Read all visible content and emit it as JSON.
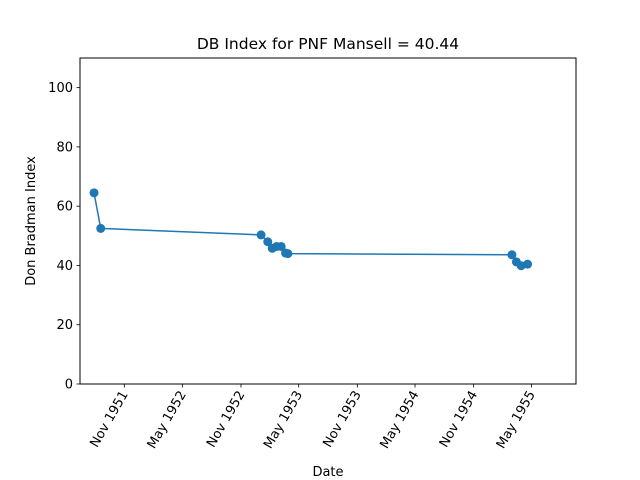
{
  "chart_data": {
    "type": "line",
    "title": "DB Index for PNF Mansell = 40.44",
    "xlabel": "Date",
    "ylabel": "Don Bradman Index",
    "ylim": [
      0,
      110
    ],
    "xlim": [
      "1951-06-15",
      "1955-09-18"
    ],
    "yticks": [
      0,
      20,
      40,
      60,
      80,
      100
    ],
    "xticks": [
      {
        "date": "1951-11-01",
        "label": "Nov 1951"
      },
      {
        "date": "1952-05-01",
        "label": "May 1952"
      },
      {
        "date": "1952-11-01",
        "label": "Nov 1952"
      },
      {
        "date": "1953-05-01",
        "label": "May 1953"
      },
      {
        "date": "1953-11-01",
        "label": "Nov 1953"
      },
      {
        "date": "1954-05-01",
        "label": "May 1954"
      },
      {
        "date": "1954-11-01",
        "label": "Nov 1954"
      },
      {
        "date": "1955-05-01",
        "label": "May 1955"
      }
    ],
    "grid": false,
    "color": "#1f77b4",
    "series": [
      {
        "points": [
          {
            "x": "1951-07-29",
            "y": 64.5
          },
          {
            "x": "1951-08-19",
            "y": 52.5
          },
          {
            "x": "1953-01-03",
            "y": 50.3
          },
          {
            "x": "1953-01-24",
            "y": 48.0
          },
          {
            "x": "1953-02-07",
            "y": 45.8
          },
          {
            "x": "1953-02-21",
            "y": 46.4
          },
          {
            "x": "1953-03-07",
            "y": 46.4
          },
          {
            "x": "1953-03-21",
            "y": 44.2
          },
          {
            "x": "1953-03-28",
            "y": 44.0
          },
          {
            "x": "1955-03-01",
            "y": 43.6
          },
          {
            "x": "1955-03-15",
            "y": 41.2
          },
          {
            "x": "1955-03-30",
            "y": 39.9
          },
          {
            "x": "1955-04-19",
            "y": 40.44
          }
        ]
      }
    ]
  }
}
